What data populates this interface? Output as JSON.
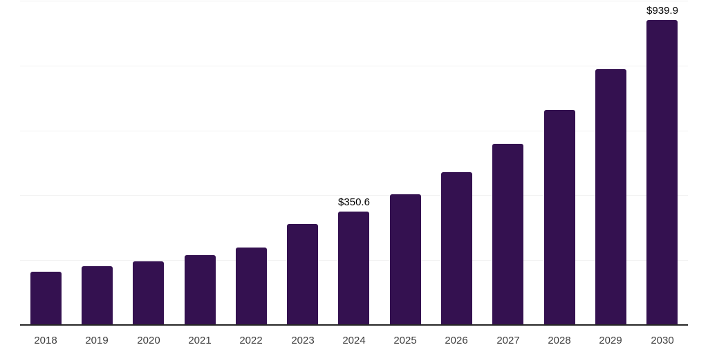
{
  "chart_data": {
    "type": "bar",
    "categories": [
      "2018",
      "2019",
      "2020",
      "2021",
      "2022",
      "2023",
      "2024",
      "2025",
      "2026",
      "2027",
      "2028",
      "2029",
      "2030"
    ],
    "values": [
      165,
      181,
      196,
      215,
      239,
      311,
      350.6,
      403,
      471,
      559,
      663,
      789,
      939.9
    ],
    "bar_labels": [
      "",
      "",
      "",
      "",
      "",
      "",
      "$350.6",
      "",
      "",
      "",
      "",
      "",
      "$939.9"
    ],
    "ylim": [
      0,
      1000
    ],
    "gridline_step": 200,
    "grid": "horizontal",
    "legend": "none",
    "y_axis_labels_visible": false
  },
  "styles": {
    "bar_color": "#341150",
    "axis_line_color": "#262626",
    "gridline_color": "#f1f1f1",
    "tick_label_color": "#3d3d3d",
    "value_label_color": "#000000",
    "background": "#ffffff"
  }
}
